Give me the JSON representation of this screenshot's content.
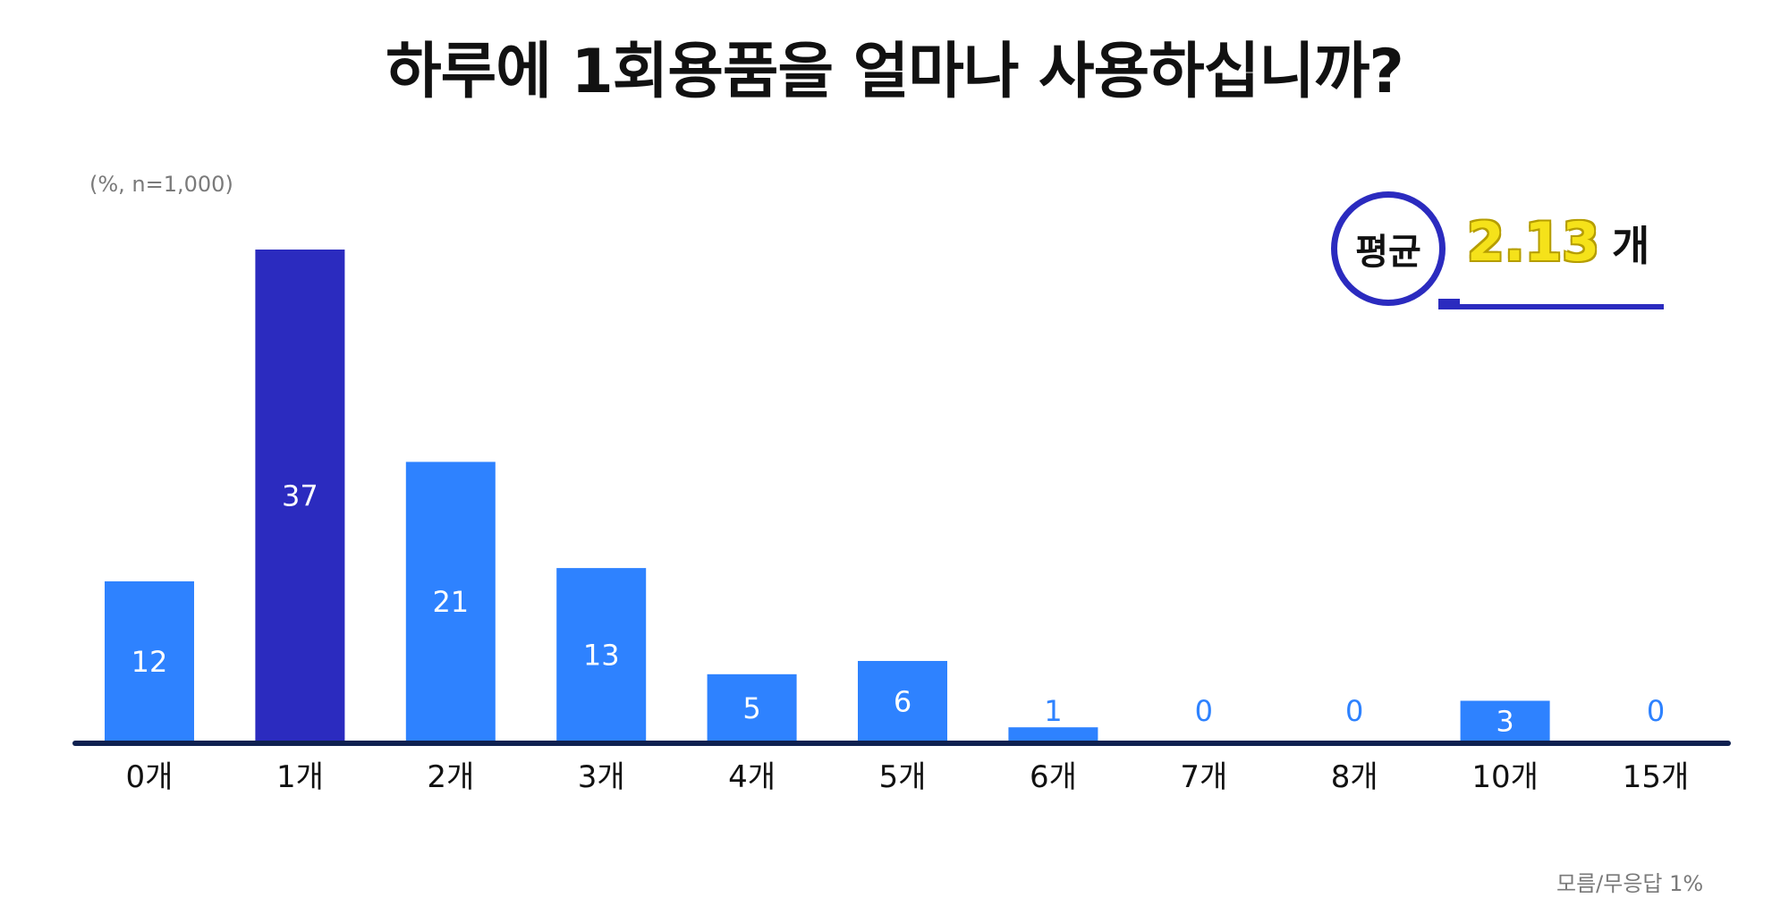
{
  "title": "하루에 1회용품을 얼마나 사용하십니까?",
  "unit_note": "(%, n=1,000)",
  "average": {
    "label": "평균",
    "value": "2.13",
    "unit": "개"
  },
  "footnote": "모름/무응답 1%",
  "colors": {
    "bar": "#2e82ff",
    "highlight": "#2b2bbf",
    "axis": "#0f2150",
    "label_outside": "#2e82ff"
  },
  "chart_data": {
    "type": "bar",
    "title": "하루에 1회용품을 얼마나 사용하십니까?",
    "categories": [
      "0개",
      "1개",
      "2개",
      "3개",
      "4개",
      "5개",
      "6개",
      "7개",
      "8개",
      "10개",
      "15개"
    ],
    "values": [
      12,
      37,
      21,
      13,
      5,
      6,
      1,
      0,
      0,
      3,
      0
    ],
    "highlight_index": 1,
    "ylim": [
      0,
      37
    ],
    "grid": false,
    "legend": "none"
  }
}
